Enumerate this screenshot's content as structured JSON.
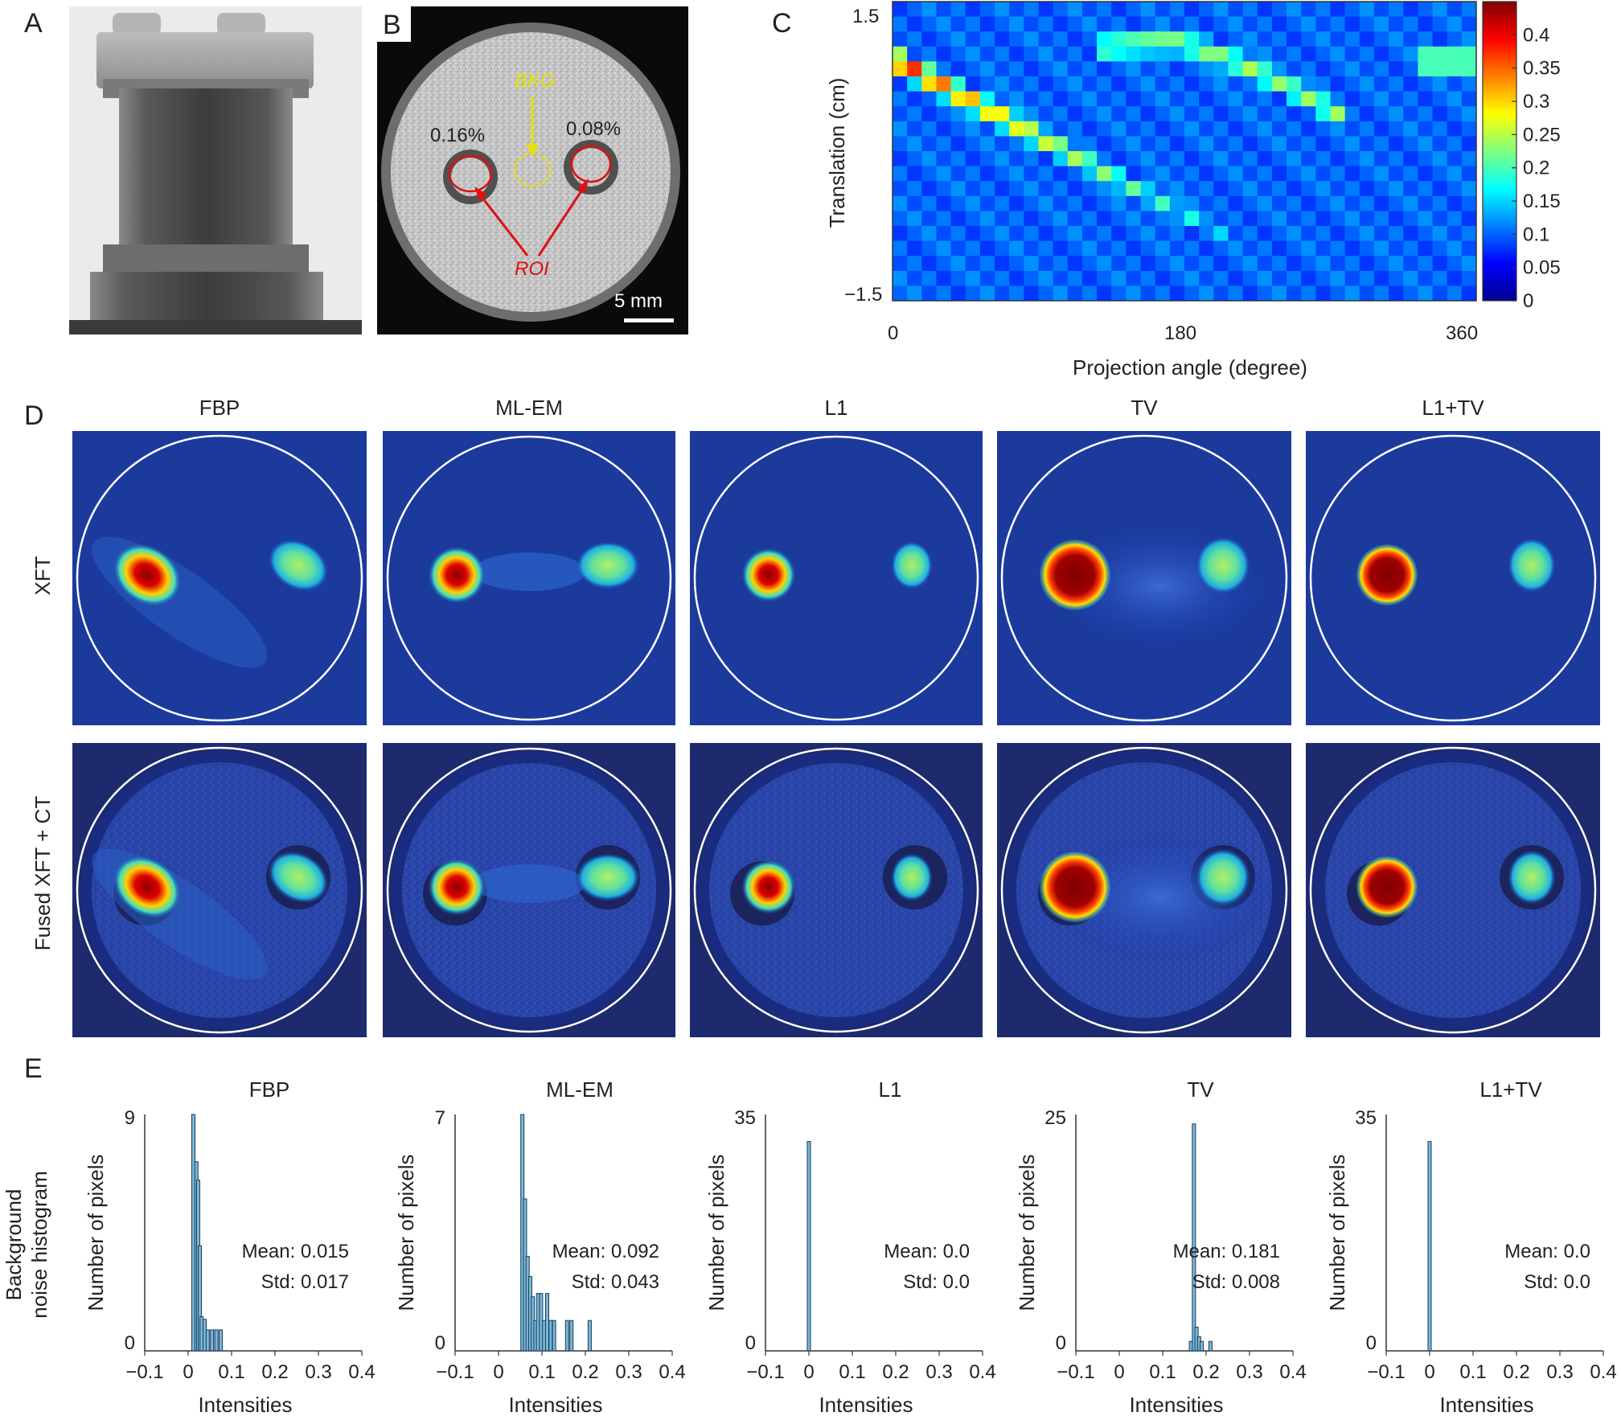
{
  "panel_labels": {
    "a": "A",
    "b": "B",
    "c": "C",
    "d": "D",
    "e": "E"
  },
  "panel_b": {
    "label_016": "0.16%",
    "label_008": "0.08%",
    "bkg": "BKG",
    "roi": "ROI",
    "scale_bar": "5 mm"
  },
  "panel_c": {
    "xlabel": "Projection angle (degree)",
    "ylabel": "Translation (cm)",
    "ytick_top": "1.5",
    "ytick_bottom": "−1.5",
    "xticks": [
      "0",
      "180",
      "360"
    ],
    "colorbar_ticks": [
      "0.4",
      "0.35",
      "0.3",
      "0.25",
      "0.2",
      "0.15",
      "0.1",
      "0.05",
      "0"
    ],
    "colorbar_range": [
      0,
      0.45
    ]
  },
  "panel_d": {
    "methods": [
      "FBP",
      "ML-EM",
      "L1",
      "TV",
      "L1+TV"
    ],
    "row_labels": [
      "XFT",
      "Fused XFT + CT"
    ]
  },
  "panel_e": {
    "row_label_line1": "Background",
    "row_label_line2": "noise histogram",
    "ylabel": "Number of pixels",
    "xlabel": "Intensities",
    "xticks": [
      "−0.1",
      "0",
      "0.1",
      "0.2",
      "0.3",
      "0.4"
    ],
    "ytick_zero": "0"
  },
  "chart_data": [
    {
      "type": "bar",
      "title": "FBP",
      "xlabel": "Intensities",
      "ylabel": "Number of pixels",
      "xlim": [
        -0.1,
        0.4
      ],
      "ylim": [
        0,
        9
      ],
      "yticks": [
        "0",
        "9"
      ],
      "x": [
        0.012,
        0.019,
        0.023,
        0.027,
        0.031,
        0.038,
        0.045,
        0.055,
        0.065,
        0.075
      ],
      "values": [
        9,
        7.2,
        6.5,
        4,
        1.3,
        1.2,
        0.8,
        0.8,
        0.8,
        0.8
      ],
      "mean_text": "Mean: 0.015",
      "std_text": "Std: 0.017"
    },
    {
      "type": "bar",
      "title": "ML-EM",
      "xlabel": "Intensities",
      "ylabel": "Number of pixels",
      "xlim": [
        -0.1,
        0.4
      ],
      "ylim": [
        0,
        7
      ],
      "yticks": [
        "0",
        "7"
      ],
      "x": [
        0.055,
        0.061,
        0.067,
        0.073,
        0.079,
        0.085,
        0.091,
        0.098,
        0.105,
        0.112,
        0.12,
        0.128,
        0.158,
        0.168,
        0.21
      ],
      "values": [
        7,
        4.5,
        2.8,
        2.2,
        1.6,
        0.9,
        1.7,
        1.7,
        0.9,
        1.7,
        0.9,
        0.9,
        0.9,
        0.9,
        0.9
      ],
      "mean_text": "Mean: 0.092",
      "std_text": "Std: 0.043"
    },
    {
      "type": "bar",
      "title": "L1",
      "xlabel": "Intensities",
      "ylabel": "Number of pixels",
      "xlim": [
        -0.1,
        0.4
      ],
      "ylim": [
        0,
        35
      ],
      "yticks": [
        "0",
        "35"
      ],
      "x": [
        0.0
      ],
      "values": [
        31
      ],
      "mean_text": "Mean: 0.0",
      "std_text": "Std: 0.0"
    },
    {
      "type": "bar",
      "title": "TV",
      "xlabel": "Intensities",
      "ylabel": "Number of pixels",
      "xlim": [
        -0.1,
        0.4
      ],
      "ylim": [
        0,
        25
      ],
      "yticks": [
        "0",
        "25"
      ],
      "x": [
        0.165,
        0.172,
        0.178,
        0.184,
        0.19,
        0.21
      ],
      "values": [
        1,
        24,
        2.5,
        1.5,
        1,
        1
      ],
      "mean_text": "Mean: 0.181",
      "std_text": "Std: 0.008"
    },
    {
      "type": "bar",
      "title": "L1+TV",
      "xlabel": "Intensities",
      "ylabel": "Number of pixels",
      "xlim": [
        -0.1,
        0.4
      ],
      "ylim": [
        0,
        35
      ],
      "yticks": [
        "0",
        "35"
      ],
      "x": [
        0.0
      ],
      "values": [
        31
      ],
      "mean_text": "Mean: 0.0",
      "std_text": "Std: 0.0"
    }
  ]
}
